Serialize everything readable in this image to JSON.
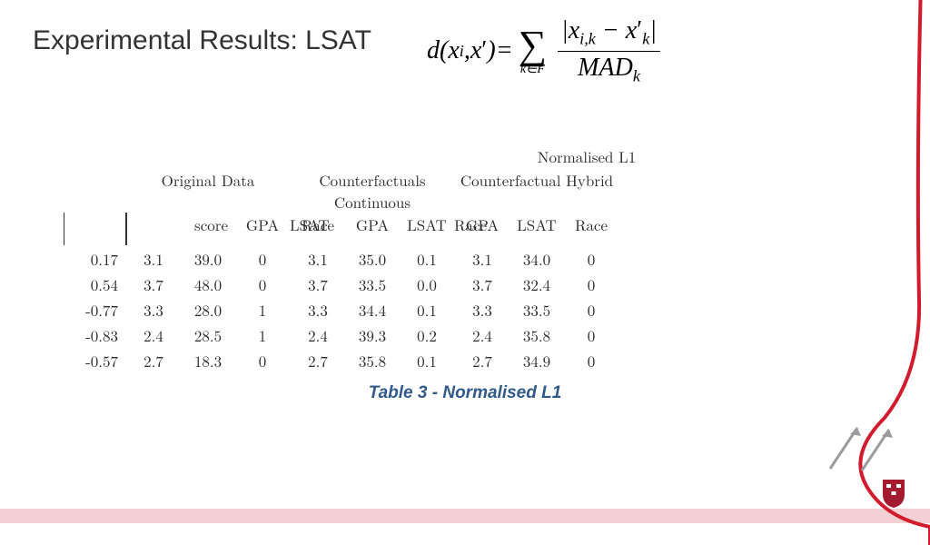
{
  "title": "Experimental Results: LSAT",
  "formula": {
    "lhs_d": "d",
    "lhs_x": "x",
    "lhs_i": "i",
    "lhs_xprime": "x",
    "eq": " = ",
    "sigma": "∑",
    "sigma_sub_k": "k",
    "sigma_sub_in": "∈",
    "sigma_sub_F": "F",
    "num_bar1": "|",
    "num_x": "x",
    "num_ik": "i,k",
    "num_minus": " − ",
    "num_xprime": "x",
    "num_k": "k",
    "num_bar2": "|",
    "den_mad": "MAD",
    "den_k": "k"
  },
  "table": {
    "super_header": "Normalised L1",
    "group_headers": [
      "Original Data",
      "Counterfactuals Continuous",
      "Counterfactual Hybrid"
    ],
    "col_headers": {
      "score": "score",
      "gpa": "GPA",
      "lsat": "LSAT",
      "race": "Race"
    },
    "rows": [
      {
        "score": "0.17",
        "og": [
          "3.1",
          "39.0",
          "0"
        ],
        "cc": [
          "3.1",
          "35.0",
          "0.1"
        ],
        "ch": [
          "3.1",
          "34.0",
          "0"
        ]
      },
      {
        "score": "0.54",
        "og": [
          "3.7",
          "48.0",
          "0"
        ],
        "cc": [
          "3.7",
          "33.5",
          "0.0"
        ],
        "ch": [
          "3.7",
          "32.4",
          "0"
        ]
      },
      {
        "score": "-0.77",
        "og": [
          "3.3",
          "28.0",
          "1"
        ],
        "cc": [
          "3.3",
          "34.4",
          "0.1"
        ],
        "ch": [
          "3.3",
          "33.5",
          "0"
        ]
      },
      {
        "score": "-0.83",
        "og": [
          "2.4",
          "28.5",
          "1"
        ],
        "cc": [
          "2.4",
          "39.3",
          "0.2"
        ],
        "ch": [
          "2.4",
          "35.8",
          "0"
        ]
      },
      {
        "score": "-0.57",
        "og": [
          "2.7",
          "18.3",
          "0"
        ],
        "cc": [
          "2.7",
          "35.8",
          "0.1"
        ],
        "ch": [
          "2.7",
          "34.9",
          "0"
        ]
      }
    ],
    "caption": "Table 3 - Normalised L1"
  },
  "colors": {
    "title": "#333333",
    "caption": "#315a8a",
    "footer_bar": "#f3d0d3",
    "red_curve": "#d21c2e",
    "grey_arrow": "#9b9b9b",
    "shield": "#a41c30",
    "shield_white": "#ffffff"
  }
}
